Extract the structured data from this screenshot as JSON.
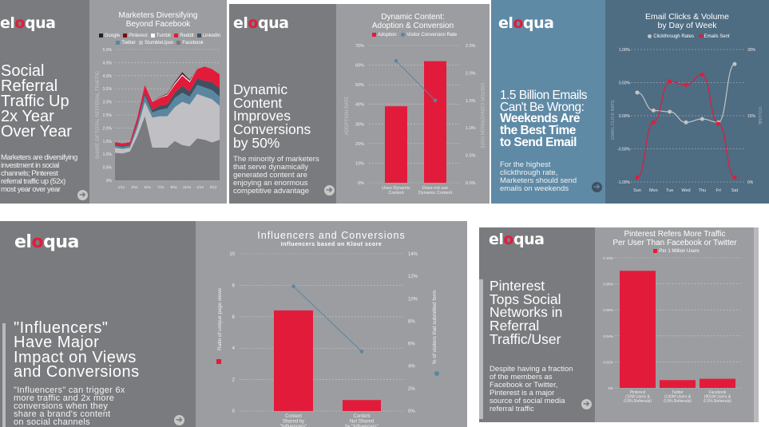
{
  "brand": {
    "logo_text": "eloqua",
    "accent": "#e31b3b",
    "secondary": "#5a86a0"
  },
  "tiles": [
    {
      "headline": [
        "Social",
        "Referral",
        "Traffic Up",
        "2x Year",
        "Over Year"
      ],
      "body": [
        "Marketers are diversifying",
        "investment in social",
        "channels; Pinterest",
        "referral traffic up (52x)",
        "most year over year"
      ],
      "icon": "arrow-right-icon"
    },
    {
      "headline": [
        "Dynamic",
        "Content",
        "Improves",
        "Conversions",
        "by 50%"
      ],
      "body": [
        "The minority of marketers",
        "that serve dynamically",
        "generated content are",
        "enjoying an enormous",
        "competitive advantage"
      ],
      "icon": "arrow-right-icon"
    },
    {
      "headline": [
        "1.5 Billion Emails",
        "Can't Be Wrong:"
      ],
      "headline_bold": [
        "Weekends Are",
        "the Best Time",
        "to Send Email"
      ],
      "body": [
        "For the highest",
        "clickthrough rate,",
        "Marketers should send",
        "emails on weekends"
      ],
      "icon": "arrow-right-icon"
    },
    {
      "headline": [
        "\"Influencers\"",
        "Have Major",
        "Impact on Views",
        "and Conversions"
      ],
      "body": [
        "\"Influencers\" can trigger 6x",
        "more traffic and 2x more",
        "conversions when they",
        "share a brand's content",
        "on social channels"
      ],
      "icon": "arrow-right-icon"
    },
    {
      "headline": [
        "Pinterest",
        "Tops Social",
        "Networks in",
        "Referral",
        "Traffic/User"
      ],
      "body": [
        "Despite having a fraction",
        "of the members as",
        "Facebook or Twitter,",
        "Pinterest is a major",
        "source of social media",
        "referral traffic"
      ],
      "icon": "arrow-right-icon"
    }
  ],
  "chart_data": [
    {
      "type": "area",
      "stacked": true,
      "title": [
        "Marketers Diversifying",
        "Beyond Facebook"
      ],
      "ylabel": "SHARE OF TOTAL REFFERAL TRAFFIC",
      "ylim": [
        0,
        5
      ],
      "yticks": [
        "0%",
        "0.5%",
        "1.0%",
        "1.5%",
        "2.0%",
        "2.5%",
        "3.0%",
        "3.5%",
        "4.0%",
        "4.5%",
        "5.0%"
      ],
      "xticks": [
        "1/11",
        "3/11",
        "5/11",
        "7/11",
        "9/11",
        "11/11",
        "1/12",
        "3/12"
      ],
      "x": [
        "1/11",
        "2/11",
        "3/11",
        "4/11",
        "5/11",
        "6/11",
        "7/11",
        "8/11",
        "9/11",
        "10/11",
        "11/11",
        "12/11",
        "1/12",
        "2/12",
        "3/12"
      ],
      "grid": true,
      "legend": "top",
      "series": [
        {
          "name": "Facebook",
          "color": "#7a7b7e",
          "values": [
            1.05,
            1.03,
            1.1,
            1.7,
            2.45,
            1.25,
            1.25,
            1.25,
            1.5,
            1.35,
            1.3,
            1.6,
            1.55,
            1.45,
            1.55
          ]
        },
        {
          "name": "StumbleUpon",
          "color": "#c0c0c4",
          "values": [
            0.2,
            0.17,
            0.15,
            0.3,
            0.55,
            1.15,
            1.2,
            1.2,
            1.3,
            1.65,
            1.6,
            1.7,
            1.65,
            1.65,
            1.3
          ]
        },
        {
          "name": "Twitter",
          "color": "#5a86a0",
          "values": [
            0.08,
            0.08,
            0.08,
            0.15,
            0.25,
            0.2,
            0.25,
            0.3,
            0.35,
            0.35,
            0.3,
            0.35,
            0.35,
            0.35,
            0.35
          ]
        },
        {
          "name": "LinkedIn",
          "color": "#3f5160",
          "values": [
            0.03,
            0.03,
            0.03,
            0.05,
            0.1,
            0.1,
            0.15,
            0.15,
            0.2,
            0.25,
            0.2,
            0.25,
            0.25,
            0.3,
            0.3
          ]
        },
        {
          "name": "Reddit",
          "color": "#e31b3b",
          "values": [
            0.1,
            0.1,
            0.1,
            0.2,
            0.3,
            0.3,
            0.3,
            0.35,
            0.3,
            0.4,
            0.35,
            0.35,
            0.55,
            0.5,
            0.55
          ]
        },
        {
          "name": "Tumblr",
          "color": "#ffffff",
          "values": [
            0,
            0,
            0,
            0,
            0.01,
            0.01,
            0.02,
            0.03,
            0.05,
            0.05,
            0.05,
            0,
            0,
            0,
            0
          ]
        },
        {
          "name": "Pinterest",
          "color": "#7a0a12",
          "values": [
            0,
            0,
            0,
            0,
            0,
            0,
            0.01,
            0.02,
            0.03,
            0.05,
            0.02,
            0,
            0,
            0,
            0
          ]
        },
        {
          "name": "Google",
          "color": "#222222",
          "values": [
            0,
            0,
            0,
            0,
            0,
            0,
            0.01,
            0.01,
            0.02,
            0.03,
            0.02,
            0,
            0,
            0,
            0
          ]
        }
      ],
      "legend_order": [
        "Google",
        "Pinterest",
        "Tumblr",
        "Reddit",
        "LinkedIn",
        "Twitter",
        "StumbleUpon",
        "Facebook"
      ]
    },
    {
      "type": "bar+line",
      "title": [
        "Dynamic Content:",
        "Adoption & Conversion"
      ],
      "categories": [
        [
          "Uses Dynamic",
          "Content"
        ],
        [
          "Does not use",
          "Dynamic Content"
        ]
      ],
      "ylabel": "ADOPTION RATE",
      "y2label": "VISITOR CONVERSION RATE",
      "ylim": [
        0,
        70
      ],
      "y2lim": [
        0,
        2.5
      ],
      "yticks": [
        "0%",
        "10%",
        "20%",
        "30%",
        "40%",
        "50%",
        "60%",
        "70%"
      ],
      "y2ticks": [
        "0.0%",
        "0.5%",
        "1.0%",
        "1.5%",
        "2.0%",
        "2.5%"
      ],
      "series": [
        {
          "name": "Adoption",
          "type": "bar",
          "color": "#e31b3b",
          "values": [
            39,
            62
          ]
        },
        {
          "name": "Visitor Conversion Rate",
          "type": "line",
          "axis": "right",
          "color": "#5a86a0",
          "values": [
            2.22,
            1.5
          ]
        }
      ],
      "grid": true,
      "legend": "top"
    },
    {
      "type": "line",
      "title": [
        "Email Clicks & Volume",
        "by Day of Week"
      ],
      "categories": [
        "Sun",
        "Mon",
        "Tue",
        "Wed",
        "Thu",
        "Fri",
        "Sat"
      ],
      "ylabel": "EMAIL CLICK RATE",
      "y2label": "VOLUME",
      "ylim": [
        -1,
        1
      ],
      "y2lim": [
        0,
        30
      ],
      "yticks": [
        "-1.00%",
        "-0.50%",
        "0.00%",
        "0.50%",
        "1.00%"
      ],
      "y2ticks": [
        "0%",
        "15%",
        "30%"
      ],
      "series": [
        {
          "name": "Clickthrough Rates",
          "color": "#c4c4c4",
          "values": [
            0.35,
            0.08,
            0.06,
            -0.1,
            -0.05,
            -0.1,
            0.78
          ]
        },
        {
          "name": "Emails Sent",
          "axis": "right",
          "color": "#e31b3b",
          "values": [
            1,
            13.5,
            22.8,
            22,
            24.3,
            13.2,
            1
          ]
        }
      ],
      "grid": true,
      "legend": "top"
    },
    {
      "type": "bar+line",
      "title": [
        "Influencers and Conversions"
      ],
      "subtitle": "Influencers based on Klout score",
      "categories": [
        [
          "Content",
          "Shared by",
          "\"Influencers\""
        ],
        [
          "Content",
          "Not Shared",
          "by \"Influencers\""
        ]
      ],
      "ylabel": "Ratio of unique page views",
      "y2label": "% of visitors that submitted form",
      "ylim": [
        0,
        10
      ],
      "y2lim": [
        0,
        14
      ],
      "yticks": [
        "0",
        "2",
        "4",
        "6",
        "8",
        "10"
      ],
      "y2ticks": [
        "0%",
        "2%",
        "4%",
        "6%",
        "8%",
        "10%",
        "12%",
        "14%"
      ],
      "series": [
        {
          "name": "Ratio of unique page views",
          "type": "bar",
          "color": "#e31b3b",
          "values": [
            6.4,
            0.7
          ]
        },
        {
          "name": "% of visitors that submitted form",
          "type": "line",
          "axis": "right",
          "color": "#5a86a0",
          "values": [
            11.1,
            5.3
          ]
        }
      ],
      "grid": true,
      "legend": "side"
    },
    {
      "type": "bar",
      "title": [
        "Pinterest Refers More Traffic",
        "Per User Than Facebook or Twitter"
      ],
      "categories": [
        [
          "Pinterest",
          "(10M Users &",
          "0.9% Referrals)"
        ],
        [
          "Twitter",
          "(140M Users &",
          "0.9% Referrals)"
        ],
        [
          "Facebook",
          "(901M Users &",
          "6.5% Referrals)"
        ]
      ],
      "ylim": [
        0,
        0.1
      ],
      "yticks": [
        "0%",
        "0.02%",
        "0.04%",
        "0.06%",
        "0.08%",
        "0.10%"
      ],
      "series": [
        {
          "name": "Per 1 Million Users",
          "color": "#e31b3b",
          "values": [
            0.09,
            0.006,
            0.007
          ]
        }
      ],
      "grid": true,
      "legend": "top"
    }
  ]
}
